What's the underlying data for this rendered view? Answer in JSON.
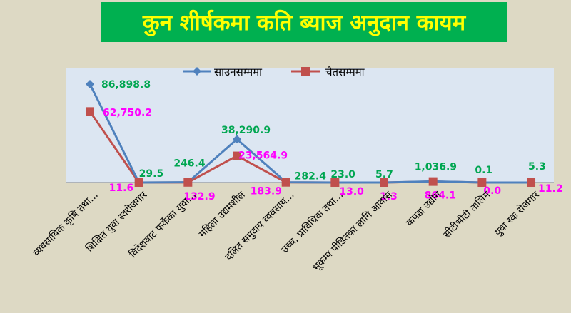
{
  "title": "कुन शीर्षकमा कति ब्याज अनुदान कायम",
  "colors": {
    "background": "#ddd9c4",
    "plot_area": "#dce6f2",
    "title_bg": "#00b050",
    "title_text": "#ffff00",
    "series_1": "#4f81bd",
    "series_2": "#c0504d",
    "series_1_labels": "#00a651",
    "series_2_labels": "#ff00ff"
  },
  "chart_data": {
    "type": "line",
    "title": "कुन शीर्षकमा कति ब्याज अनुदान कायम",
    "xlabel": "",
    "ylabel": "",
    "legend_position": "top",
    "grid": false,
    "categories": [
      "व्यवसायिक कृषि तथा...",
      "शिक्षित युवा स्वरोजगार",
      "विदेशबाट फर्केका युवा...",
      "महिला उद्यमशील",
      "दलित समुदाय व्यवसाय...",
      "उच्च, प्राविधिक तथा...",
      "भूकम्प पीडितका लागि आवास",
      "कपडा उद्योग",
      "सीटीभीटी तालिम",
      "युवा स्वः रोजगार"
    ],
    "series": [
      {
        "name": "साउनसम्ममा",
        "values": [
          86898.8,
          29.5,
          246.4,
          38290.9,
          282.4,
          23.0,
          5.7,
          1036.9,
          0.1,
          5.3
        ],
        "labels": [
          "86,898.8",
          "29.5",
          "246.4",
          "38,290.9",
          "282.4",
          "23.0",
          "5.7",
          "1,036.9",
          "0.1",
          "5.3"
        ]
      },
      {
        "name": "चैतसम्ममा",
        "values": [
          62750.2,
          11.6,
          132.9,
          23564.9,
          183.9,
          13.0,
          1.3,
          864.1,
          0.0,
          11.2
        ],
        "labels": [
          "62,750.2",
          "11.6",
          "132.9",
          "23,564.9",
          "183.9",
          "13.0",
          "1.3",
          "864.1",
          "0.0",
          "11.2"
        ]
      }
    ]
  }
}
